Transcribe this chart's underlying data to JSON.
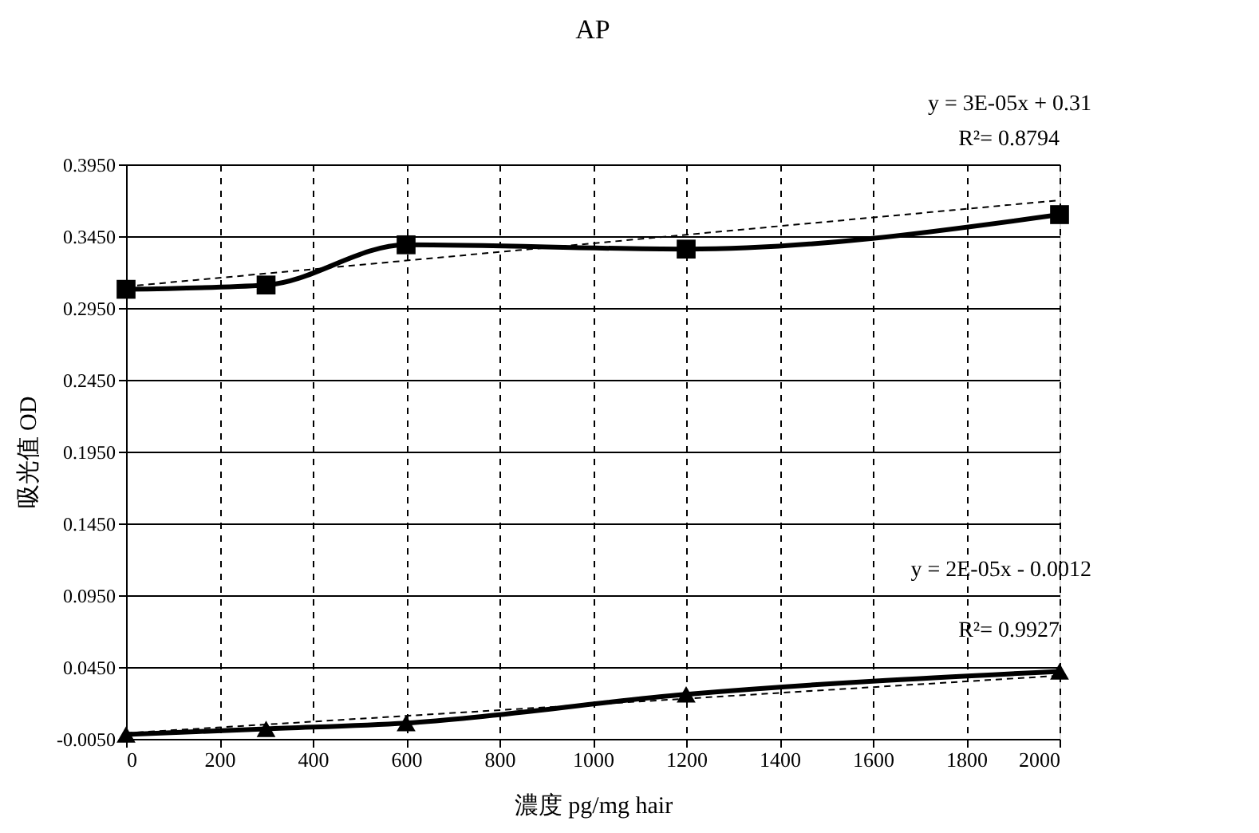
{
  "chart_data": {
    "type": "line",
    "title": "AP",
    "xlabel": "濃度 pg/mg hair",
    "ylabel": "吸光值 OD",
    "x": [
      0,
      300,
      600,
      1200,
      2000
    ],
    "series": [
      {
        "type": "line",
        "color": "#000000",
        "marker": "square",
        "line_style": "solid",
        "values": [
          0.308,
          0.311,
          0.339,
          0.336,
          0.36
        ]
      },
      {
        "type": "line",
        "color": "#000000",
        "marker": "triangle",
        "line_style": "solid",
        "values": [
          -0.002,
          0.002,
          0.006,
          0.026,
          0.042
        ]
      },
      {
        "type": "line",
        "color": "#000000",
        "line_style": "dashed",
        "values": [
          0.31,
          0.319,
          0.328,
          0.346,
          0.37
        ]
      },
      {
        "type": "line",
        "color": "#000000",
        "line_style": "dashed",
        "values": [
          -0.001,
          0.005,
          0.011,
          0.023,
          0.039
        ]
      }
    ],
    "xlim": [
      0,
      2000
    ],
    "xticks": [
      0,
      200,
      400,
      600,
      800,
      1000,
      1200,
      1400,
      1600,
      1800,
      2000
    ],
    "ylim": [
      -0.005,
      0.395
    ],
    "yticks": [
      {
        "value": -0.005,
        "label": "-0.0050"
      },
      {
        "value": 0.045,
        "label": "0.0450"
      },
      {
        "value": 0.095,
        "label": "0.0950"
      },
      {
        "value": 0.145,
        "label": "0.1450"
      },
      {
        "value": 0.195,
        "label": "0.1950"
      },
      {
        "value": 0.245,
        "label": "0.2450"
      },
      {
        "value": 0.295,
        "label": "0.2950"
      },
      {
        "value": 0.345,
        "label": "0.3450"
      },
      {
        "value": 0.395,
        "label": "0.3950"
      }
    ],
    "grid": true,
    "annotations": [
      "y = 3E-05x + 0.31",
      "R²= 0.8794",
      "y = 2E-05x - 0.0012",
      "R²= 0.9927"
    ]
  }
}
